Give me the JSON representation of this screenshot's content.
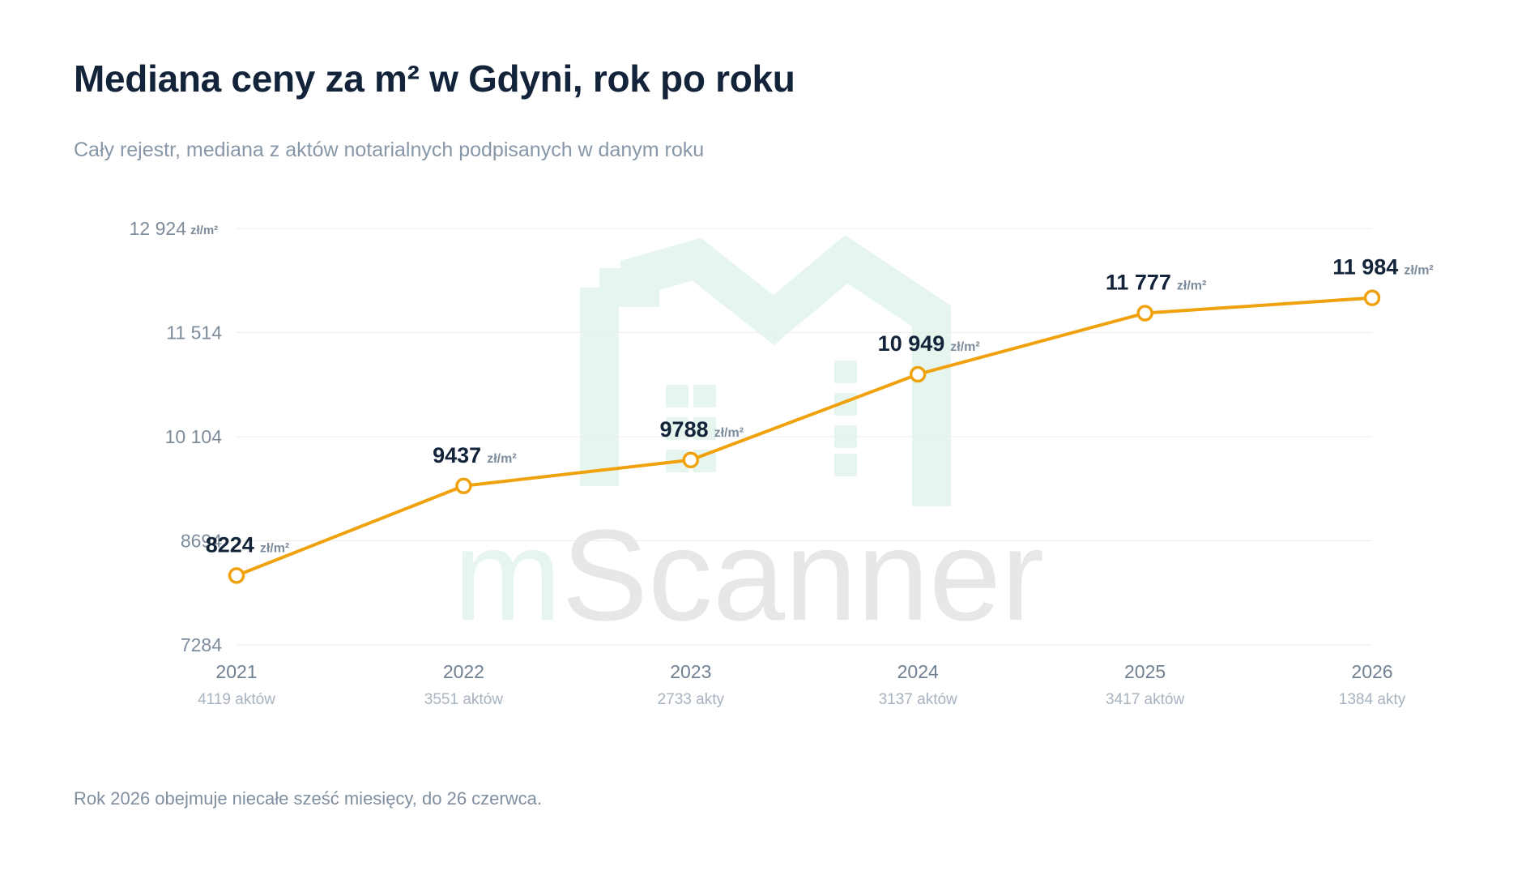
{
  "title": "Mediana ceny za m² w Gdyni, rok po roku",
  "subtitle": "Cały rejestr, mediana z aktów notarialnych podpisanych w danym roku",
  "footnote": "Rok 2026 obejmuje niecałe sześć miesięcy, do 26 czerwca.",
  "watermark": {
    "part1": "m",
    "part2": "Scanner",
    "icon": "house-pair-icon"
  },
  "colors": {
    "line": "#f0a20e",
    "marker_fill": "#ffffff",
    "grid": "#ececec",
    "title": "#13243a",
    "watermark_green": "#e6f6ee",
    "watermark_gray": "#e7e7e7"
  },
  "chart_data": {
    "type": "line",
    "title": "Mediana ceny za m² w Gdyni, rok po roku",
    "subtitle": "Cały rejestr, mediana z aktów notarialnych podpisanych w danym roku",
    "categories": [
      "2021",
      "2022",
      "2023",
      "2024",
      "2025",
      "2026"
    ],
    "category_sublabels": [
      "4119 aktów",
      "3551 aktów",
      "2733 akty",
      "3137 aktów",
      "3417 aktów",
      "1384 akty"
    ],
    "series": [
      {
        "values": [
          8224,
          9437,
          9788,
          10949,
          11777,
          11984
        ],
        "labels": [
          "8224",
          "9437",
          "9788",
          "10 949",
          "11 777",
          "11 984"
        ],
        "unit": "zł/m²"
      }
    ],
    "yticks": [
      7284,
      8694,
      10104,
      11514,
      12924
    ],
    "ytick_labels": [
      "7284",
      "8694",
      "10 104",
      "11 514",
      "12 924"
    ],
    "ytick_unit_on_top": "zł/m²",
    "ylim": [
      7284,
      12924
    ],
    "grid": true,
    "legend": "none"
  }
}
